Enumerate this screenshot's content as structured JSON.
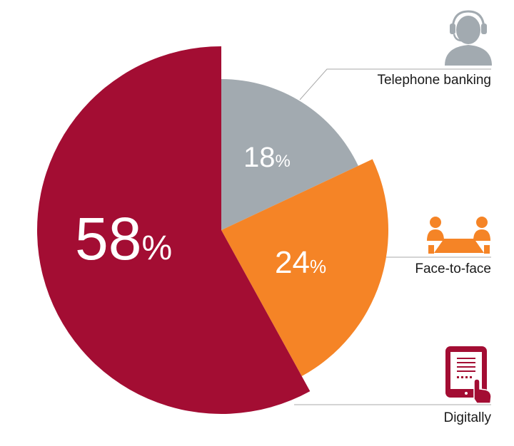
{
  "chart_data": {
    "type": "pie",
    "title": "",
    "legend": "none",
    "slices": [
      {
        "label": "Telephone banking",
        "value": 18,
        "display": "18",
        "unit": "%",
        "color": "#a2aab0",
        "icon": "headset-person-icon"
      },
      {
        "label": "Face-to-face",
        "value": 24,
        "display": "24",
        "unit": "%",
        "color": "#f58426",
        "icon": "meeting-people-icon"
      },
      {
        "label": "Digitally",
        "value": 58,
        "display": "58",
        "unit": "%",
        "color": "#a30d33",
        "icon": "tablet-touch-icon"
      }
    ]
  }
}
